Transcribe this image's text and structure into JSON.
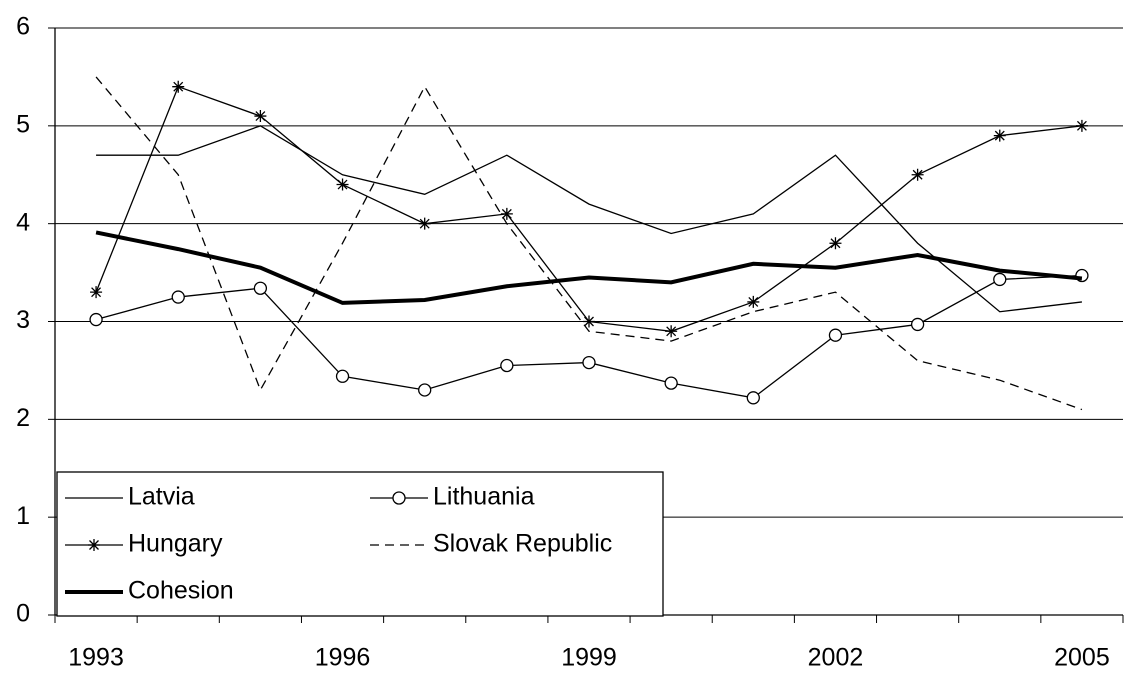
{
  "chart_data": {
    "type": "line",
    "categories": [
      "1993",
      null,
      null,
      "1996",
      null,
      null,
      "1999",
      null,
      null,
      "2002",
      null,
      null,
      "2005"
    ],
    "series": [
      {
        "name": "Latvia",
        "color": "#000000",
        "line_width": 1.3,
        "marker": "none",
        "dash": false,
        "values": [
          4.7,
          4.7,
          5.0,
          4.5,
          4.3,
          4.7,
          4.2,
          3.9,
          4.1,
          4.7,
          3.8,
          3.1,
          3.2
        ]
      },
      {
        "name": "Lithuania",
        "color": "#000000",
        "line_width": 1.3,
        "marker": "circle",
        "dash": false,
        "values": [
          3.02,
          3.25,
          3.34,
          2.44,
          2.3,
          2.55,
          2.58,
          2.37,
          2.22,
          2.86,
          2.97,
          3.43,
          3.47
        ]
      },
      {
        "name": "Hungary",
        "color": "#000000",
        "line_width": 1.3,
        "marker": "star",
        "dash": false,
        "values": [
          3.3,
          5.4,
          5.1,
          4.4,
          4.0,
          4.1,
          3.0,
          2.9,
          3.2,
          3.8,
          4.5,
          4.9,
          5.0
        ]
      },
      {
        "name": "Slovak Republic",
        "color": "#000000",
        "line_width": 1.3,
        "marker": "none",
        "dash": true,
        "values": [
          5.5,
          4.5,
          2.3,
          3.8,
          5.4,
          4.0,
          2.9,
          2.8,
          3.1,
          3.3,
          2.6,
          2.4,
          2.1
        ]
      },
      {
        "name": "Cohesion",
        "color": "#000000",
        "line_width": 4,
        "marker": "none",
        "dash": false,
        "values": [
          3.91,
          3.74,
          3.55,
          3.19,
          3.22,
          3.36,
          3.45,
          3.4,
          3.59,
          3.55,
          3.68,
          3.52,
          3.44
        ]
      }
    ],
    "ylim": [
      0,
      6
    ],
    "yticks": [
      0,
      1,
      2,
      3,
      4,
      5,
      6
    ],
    "grid": true,
    "legend": "lower left"
  }
}
